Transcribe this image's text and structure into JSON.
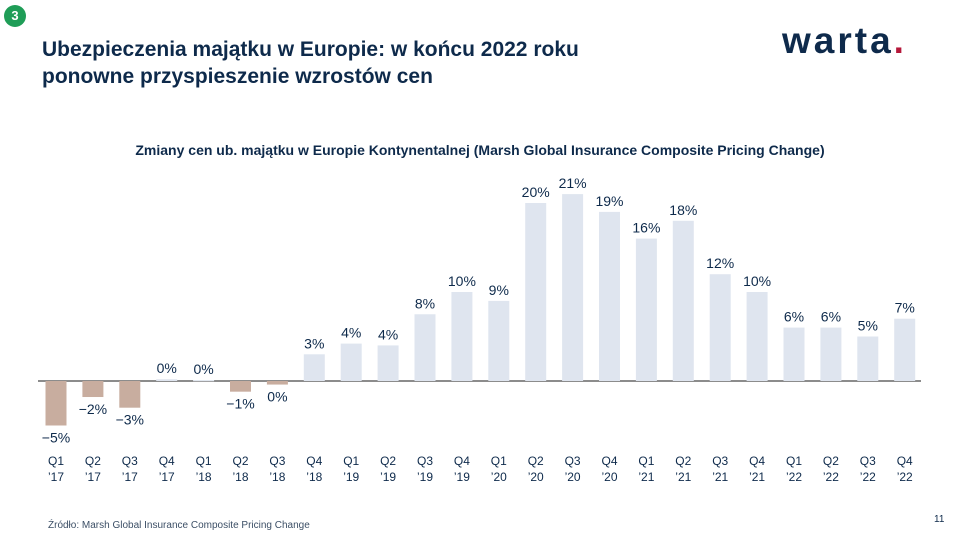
{
  "badge": "3",
  "title_line1": "Ubezpieczenia majątku w Europie: w końcu 2022 roku",
  "title_line2": "ponowne przyspieszenie wzrostów cen",
  "logo": {
    "text": "warta",
    "dot": "."
  },
  "source": "Źródło: Marsh Global Insurance Composite Pricing Change",
  "page_number": "11",
  "colors": {
    "positive": "#dfe5ef",
    "negative": "#c8ad9f",
    "text": "#0e2a4b",
    "badge": "#1f9d57",
    "logo_dot": "#b5173a"
  },
  "chart_data": {
    "type": "bar",
    "title": "Zmiany cen ub. majątku w Europie Kontynentalnej  (Marsh Global Insurance Composite Pricing Change)",
    "categories": [
      {
        "q": "Q1",
        "y": "’17"
      },
      {
        "q": "Q2",
        "y": "’17"
      },
      {
        "q": "Q3",
        "y": "’17"
      },
      {
        "q": "Q4",
        "y": "’17"
      },
      {
        "q": "Q1",
        "y": "’18"
      },
      {
        "q": "Q2",
        "y": "’18"
      },
      {
        "q": "Q3",
        "y": "’18"
      },
      {
        "q": "Q4",
        "y": "’18"
      },
      {
        "q": "Q1",
        "y": "’19"
      },
      {
        "q": "Q2",
        "y": "’19"
      },
      {
        "q": "Q3",
        "y": "’19"
      },
      {
        "q": "Q4",
        "y": "’19"
      },
      {
        "q": "Q1",
        "y": "’20"
      },
      {
        "q": "Q2",
        "y": "’20"
      },
      {
        "q": "Q3",
        "y": "’20"
      },
      {
        "q": "Q4",
        "y": "’20"
      },
      {
        "q": "Q1",
        "y": "’21"
      },
      {
        "q": "Q2",
        "y": "’21"
      },
      {
        "q": "Q3",
        "y": "’21"
      },
      {
        "q": "Q4",
        "y": "’21"
      },
      {
        "q": "Q1",
        "y": "’22"
      },
      {
        "q": "Q2",
        "y": "’22"
      },
      {
        "q": "Q3",
        "y": "’22"
      },
      {
        "q": "Q4",
        "y": "’22"
      }
    ],
    "values": [
      -5,
      -1.8,
      -3,
      0.2,
      0.1,
      -1.2,
      -0.4,
      3,
      4.2,
      4,
      7.5,
      10,
      9,
      20,
      21,
      19,
      16,
      18,
      12,
      10,
      6,
      6,
      5,
      7
    ],
    "labels": [
      "−5%",
      "−2%",
      "−3%",
      "0%",
      "0%",
      "−1%",
      "0%",
      "3%",
      "4%",
      "4%",
      "8%",
      "10%",
      "9%",
      "20%",
      "21%",
      "19%",
      "16%",
      "18%",
      "12%",
      "10%",
      "6%",
      "6%",
      "5%",
      "7%"
    ],
    "ylim": [
      -5,
      21
    ]
  }
}
